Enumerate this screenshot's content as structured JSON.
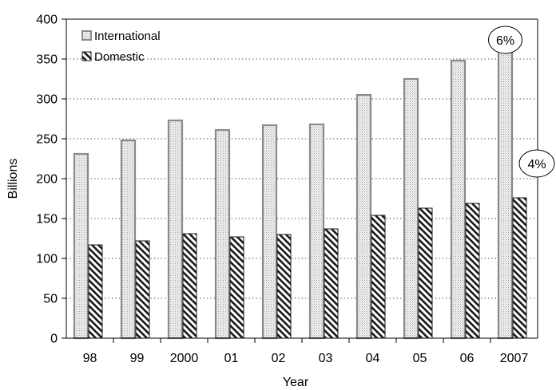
{
  "chart_data": {
    "type": "bar",
    "title": "",
    "xlabel": "Year",
    "ylabel": "Billions",
    "ylim": [
      0,
      400
    ],
    "yticks": [
      0,
      50,
      100,
      150,
      200,
      250,
      300,
      350,
      400
    ],
    "grid": "horizontal dotted",
    "legend_position": "top-left",
    "categories": [
      "98",
      "99",
      "2000",
      "01",
      "02",
      "03",
      "04",
      "05",
      "06",
      "2007"
    ],
    "series": [
      {
        "name": "International",
        "values": [
          231,
          248,
          273,
          261,
          267,
          268,
          305,
          325,
          348,
          362
        ],
        "color": "#d8d8d8",
        "pattern": "dotted"
      },
      {
        "name": "Domestic",
        "values": [
          117,
          122,
          131,
          127,
          130,
          137,
          154,
          163,
          169,
          176
        ],
        "color": "#000000",
        "pattern": "diagonal-hatch"
      }
    ],
    "annotations": [
      {
        "text": "6%",
        "series": "International",
        "category": "2007"
      },
      {
        "text": "4%",
        "series": "Domestic",
        "category": "2007"
      }
    ]
  }
}
